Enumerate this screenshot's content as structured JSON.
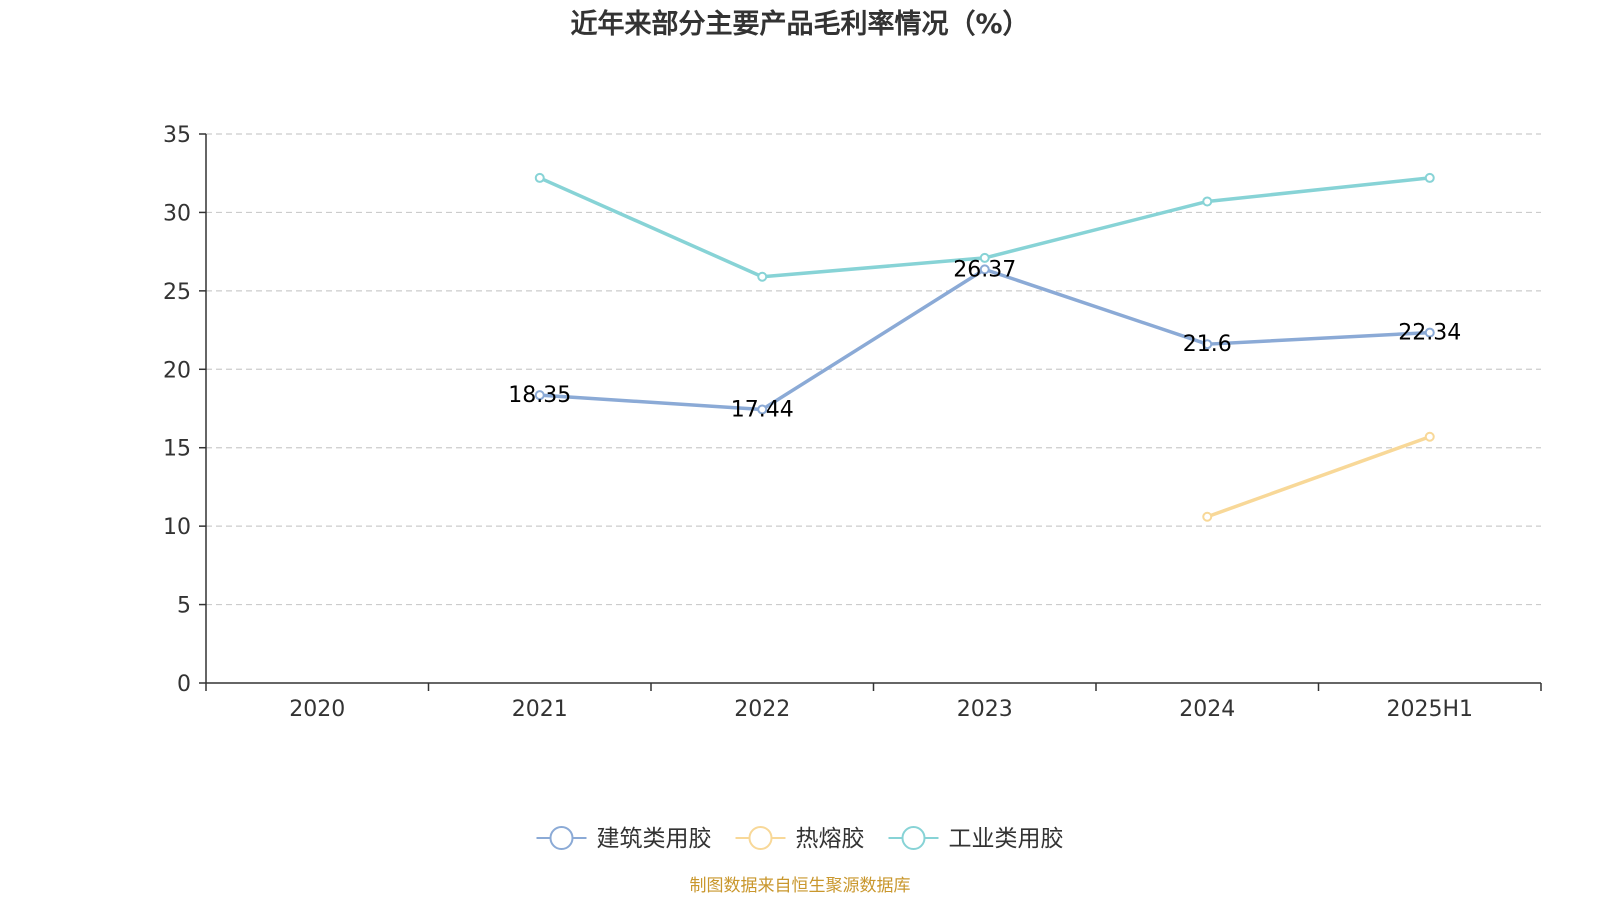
{
  "chart_data": {
    "type": "line",
    "title": "近年来部分主要产品毛利率情况（%）",
    "categories": [
      "2020",
      "2021",
      "2022",
      "2023",
      "2024",
      "2025H1"
    ],
    "ylim": [
      0,
      35
    ],
    "y_ticks": [
      "0",
      "5",
      "10",
      "15",
      "20",
      "25",
      "30",
      "35"
    ],
    "grid": true,
    "legend_position": "bottom",
    "series": [
      {
        "name": "建筑类用胶",
        "color": "#8baad6",
        "values": [
          null,
          18.35,
          17.44,
          26.37,
          21.6,
          22.34
        ],
        "labels": [
          "",
          "18.35",
          "17.44",
          "26.37",
          "21.6",
          "22.34"
        ]
      },
      {
        "name": "热熔胶",
        "color": "#f8d898",
        "values": [
          null,
          null,
          null,
          null,
          10.6,
          15.7
        ],
        "labels": [
          "",
          "",
          "",
          "",
          "",
          ""
        ]
      },
      {
        "name": "工业类用胶",
        "color": "#87d3d6",
        "values": [
          null,
          32.2,
          25.9,
          27.1,
          30.7,
          32.2
        ],
        "labels": [
          "",
          "",
          "",
          "",
          "",
          ""
        ]
      }
    ],
    "source": "制图数据来自恒生聚源数据库",
    "source_color": "#c9972d"
  }
}
